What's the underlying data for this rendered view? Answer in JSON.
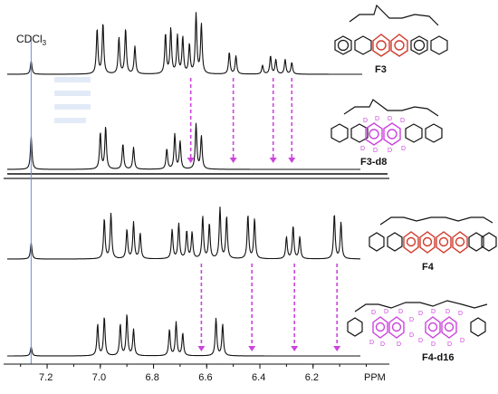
{
  "figure": {
    "solvent_label": "CDCl",
    "solvent_subscript": "3",
    "x_axis_unit": "PPM",
    "x_ticks": [
      "7.2",
      "7.0",
      "6.8",
      "6.6",
      "6.4",
      "6.2"
    ],
    "spectra_labels": {
      "f3": "F3",
      "f3d8": "F3-d8",
      "f4": "F4",
      "f4d16": "F4-d16"
    },
    "deuterium_symbol": "D"
  },
  "chart_data": {
    "type": "line",
    "xlabel": "PPM",
    "xlim": [
      7.35,
      5.92
    ],
    "x_axis_reversed": true,
    "solvent_peak_ppm": 7.26,
    "series": [
      {
        "name": "F3",
        "peaks": [
          {
            "ppm": 7.26,
            "h": 0.18
          },
          {
            "ppm": 7.012,
            "h": 0.62
          },
          {
            "ppm": 6.99,
            "h": 0.7
          },
          {
            "ppm": 6.93,
            "h": 0.5
          },
          {
            "ppm": 6.905,
            "h": 0.62
          },
          {
            "ppm": 6.87,
            "h": 0.38
          },
          {
            "ppm": 6.755,
            "h": 0.55
          },
          {
            "ppm": 6.735,
            "h": 0.62
          },
          {
            "ppm": 6.71,
            "h": 0.52
          },
          {
            "ppm": 6.69,
            "h": 0.5
          },
          {
            "ppm": 6.665,
            "h": 0.4
          },
          {
            "ppm": 6.64,
            "h": 0.82
          },
          {
            "ppm": 6.62,
            "h": 0.68
          },
          {
            "ppm": 6.515,
            "h": 0.3
          },
          {
            "ppm": 6.49,
            "h": 0.25
          },
          {
            "ppm": 6.39,
            "h": 0.12
          },
          {
            "ppm": 6.36,
            "h": 0.25
          },
          {
            "ppm": 6.34,
            "h": 0.2
          },
          {
            "ppm": 6.305,
            "h": 0.2
          },
          {
            "ppm": 6.28,
            "h": 0.16
          }
        ]
      },
      {
        "name": "F3-d8",
        "peaks": [
          {
            "ppm": 7.26,
            "h": 0.45
          },
          {
            "ppm": 7.0,
            "h": 0.5
          },
          {
            "ppm": 6.98,
            "h": 0.58
          },
          {
            "ppm": 6.915,
            "h": 0.35
          },
          {
            "ppm": 6.875,
            "h": 0.3
          },
          {
            "ppm": 6.75,
            "h": 0.28
          },
          {
            "ppm": 6.72,
            "h": 0.48
          },
          {
            "ppm": 6.7,
            "h": 0.38
          },
          {
            "ppm": 6.64,
            "h": 0.62
          },
          {
            "ppm": 6.62,
            "h": 0.45
          }
        ]
      },
      {
        "name": "F4",
        "peaks": [
          {
            "ppm": 7.26,
            "h": 0.22
          },
          {
            "ppm": 6.985,
            "h": 0.55
          },
          {
            "ppm": 6.96,
            "h": 0.62
          },
          {
            "ppm": 6.9,
            "h": 0.4
          },
          {
            "ppm": 6.875,
            "h": 0.5
          },
          {
            "ppm": 6.85,
            "h": 0.35
          },
          {
            "ppm": 6.73,
            "h": 0.4
          },
          {
            "ppm": 6.705,
            "h": 0.48
          },
          {
            "ppm": 6.675,
            "h": 0.38
          },
          {
            "ppm": 6.655,
            "h": 0.36
          },
          {
            "ppm": 6.615,
            "h": 0.58
          },
          {
            "ppm": 6.59,
            "h": 0.48
          },
          {
            "ppm": 6.55,
            "h": 0.7
          },
          {
            "ppm": 6.525,
            "h": 0.58
          },
          {
            "ppm": 6.445,
            "h": 0.6
          },
          {
            "ppm": 6.42,
            "h": 0.55
          },
          {
            "ppm": 6.3,
            "h": 0.3
          },
          {
            "ppm": 6.275,
            "h": 0.45
          },
          {
            "ppm": 6.25,
            "h": 0.3
          },
          {
            "ppm": 6.12,
            "h": 0.62
          },
          {
            "ppm": 6.095,
            "h": 0.5
          }
        ]
      },
      {
        "name": "F4-d16",
        "peaks": [
          {
            "ppm": 7.26,
            "h": 0.12
          },
          {
            "ppm": 7.01,
            "h": 0.42
          },
          {
            "ppm": 6.985,
            "h": 0.52
          },
          {
            "ppm": 6.925,
            "h": 0.42
          },
          {
            "ppm": 6.9,
            "h": 0.55
          },
          {
            "ppm": 6.875,
            "h": 0.35
          },
          {
            "ppm": 6.74,
            "h": 0.35
          },
          {
            "ppm": 6.715,
            "h": 0.45
          },
          {
            "ppm": 6.69,
            "h": 0.3
          },
          {
            "ppm": 6.565,
            "h": 0.5
          },
          {
            "ppm": 6.54,
            "h": 0.42
          }
        ]
      }
    ],
    "arrows_ppm": {
      "F3_to_F3-d8": [
        6.66,
        6.5,
        6.35,
        6.28
      ],
      "F4_to_F4-d16": [
        6.62,
        6.43,
        6.27,
        6.11
      ]
    }
  }
}
